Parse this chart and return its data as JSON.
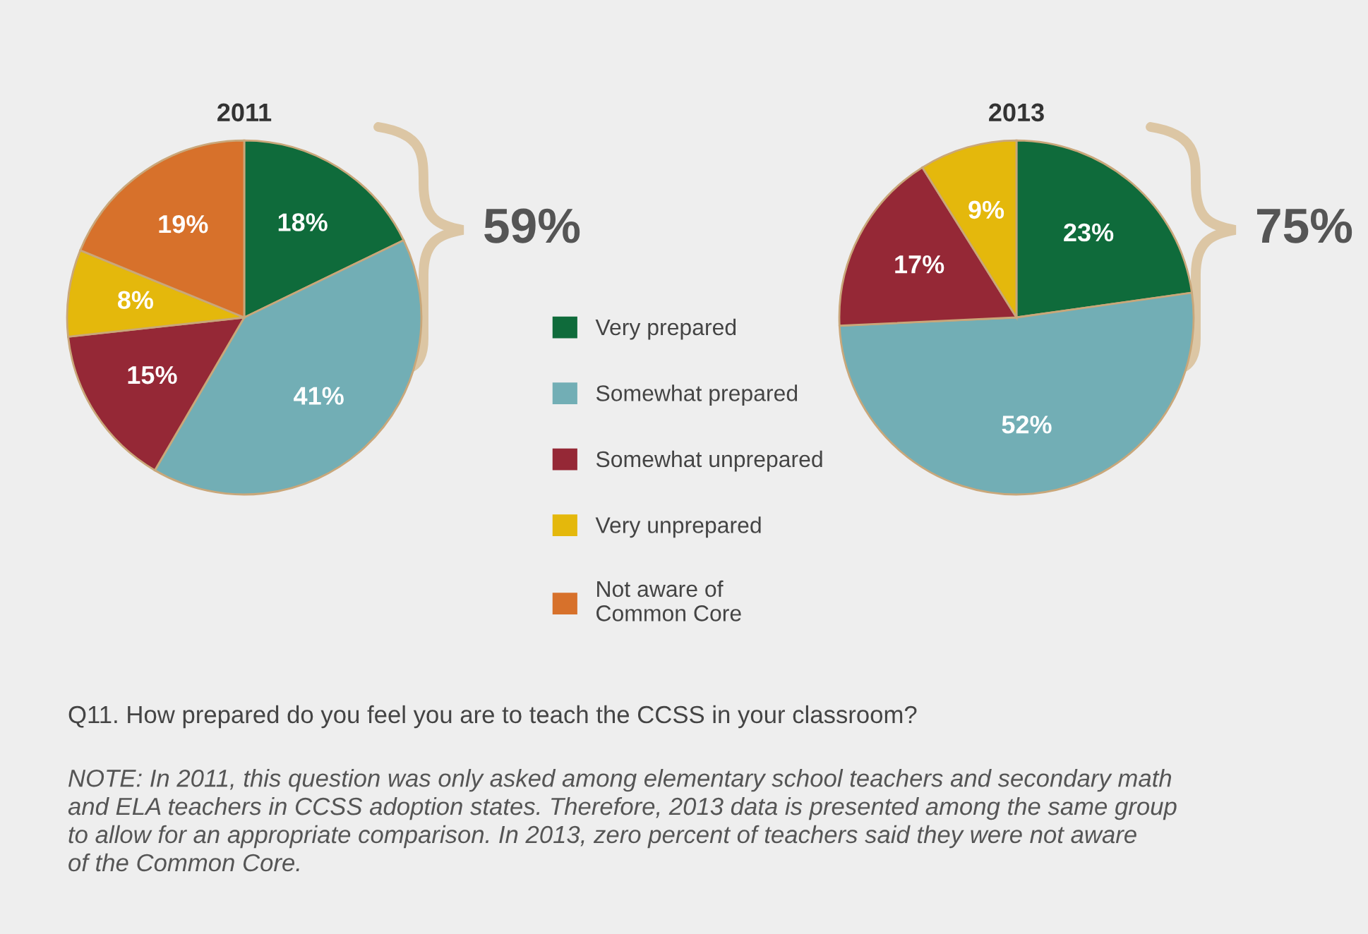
{
  "chart_data": [
    {
      "type": "pie",
      "title": "2011",
      "categories": [
        "Very prepared",
        "Somewhat prepared",
        "Somewhat unprepared",
        "Very unprepared",
        "Not aware of\nCommon Core"
      ],
      "values": [
        18,
        41,
        15,
        8,
        19
      ],
      "value_labels": [
        "18%",
        "41%",
        "15%",
        "8%",
        "19%"
      ],
      "colors": [
        "#0f6b3b",
        "#72aeb5",
        "#952836",
        "#e4b80c",
        "#d7712b"
      ],
      "legend": "right",
      "annotations": [
        "59%",
        "Q11. How prepared do you feel you are to teach the CCSS in your classroom?",
        "NOTE: In 2011, this question was only asked among elementary school teachers and secondary math\nand ELA teachers in CCSS adoption states. Therefore, 2013 data is presented among the same group\nto allow for an appropriate comparison. In 2013, zero percent of teachers said they were not aware\nof the Common Core."
      ]
    },
    {
      "type": "pie",
      "title": "2013",
      "categories": [
        null,
        null,
        null,
        null
      ],
      "values": [
        23,
        52,
        17,
        9
      ],
      "value_labels": [
        "23%",
        "52%",
        "17%",
        "9%"
      ],
      "colors": [
        "#0f6b3b",
        "#72aeb5",
        "#952836",
        "#e4b80c"
      ],
      "annotations": [
        "75%"
      ]
    }
  ]
}
